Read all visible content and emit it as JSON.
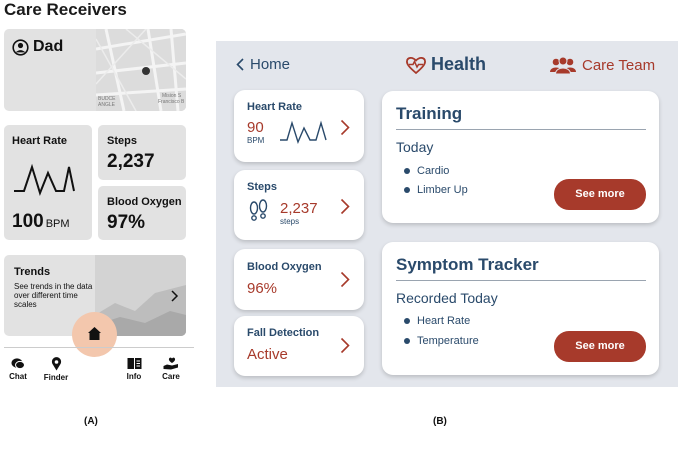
{
  "panel_a": {
    "title": "Care Receivers",
    "receiver": {
      "name": "Dad",
      "map_labels": [
        "BUDCE",
        "ANGLE",
        "Mision S",
        "Francisco B"
      ]
    },
    "heart_rate": {
      "label": "Heart Rate",
      "value": "100",
      "unit": "BPM"
    },
    "steps": {
      "label": "Steps",
      "value": "2,237"
    },
    "blood_oxygen": {
      "label": "Blood Oxygen",
      "value": "97%"
    },
    "trends": {
      "label": "Trends",
      "description": "See trends in the data over different time scales"
    },
    "nav": [
      {
        "label": "Chat",
        "icon": "chat-icon"
      },
      {
        "label": "Finder",
        "icon": "location-pin-icon"
      },
      {
        "label": "Info",
        "icon": "book-icon"
      },
      {
        "label": "Care",
        "icon": "care-hand-icon"
      }
    ],
    "home_icon": "home-icon",
    "caption": "(A)"
  },
  "panel_b": {
    "back_label": "Home",
    "title": "Health",
    "team_label": "Care Team",
    "metrics": {
      "heart_rate": {
        "label": "Heart Rate",
        "value": "90",
        "unit": "BPM"
      },
      "steps": {
        "label": "Steps",
        "value": "2,237",
        "unit": "steps"
      },
      "blood_oxygen": {
        "label": "Blood Oxygen",
        "value": "96%"
      },
      "fall_detection": {
        "label": "Fall Detection",
        "value": "Active"
      }
    },
    "training": {
      "title": "Training",
      "subtitle": "Today",
      "items": [
        "Cardio",
        "Limber Up"
      ],
      "button": "See more"
    },
    "symptom_tracker": {
      "title": "Symptom Tracker",
      "subtitle": "Recorded Today",
      "items": [
        "Heart Rate",
        "Temperature"
      ],
      "button": "See more"
    },
    "caption": "(B)"
  },
  "colors": {
    "accent_red": "#a73a2b",
    "navy": "#2a4a6b",
    "panel_bg": "#e3e6ec",
    "card_gray": "#e2e2e2",
    "home_peach": "#f3c7ad"
  }
}
